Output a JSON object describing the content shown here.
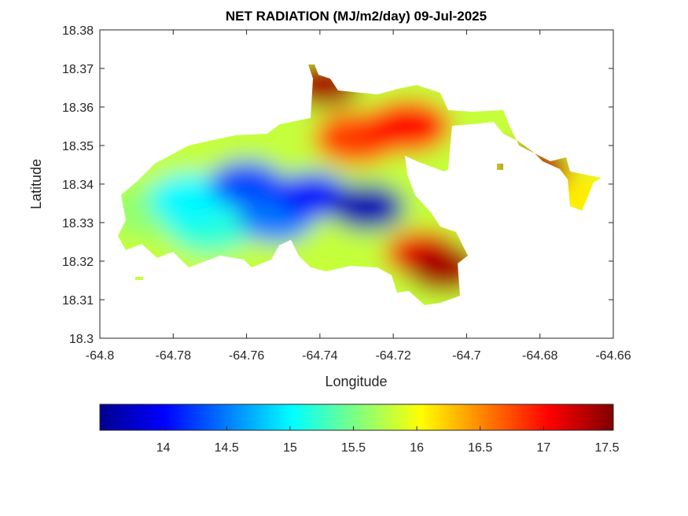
{
  "chart_data": {
    "type": "heatmap",
    "title": "NET RADIATION (MJ/m2/day) 09-Jul-2025",
    "xlabel": "Longitude",
    "ylabel": "Latitude",
    "xlim": [
      -64.8,
      -64.66
    ],
    "ylim": [
      18.3,
      18.38
    ],
    "x_ticks": [
      "-64.8",
      "-64.78",
      "-64.76",
      "-64.74",
      "-64.72",
      "-64.7",
      "-64.68",
      "-64.66"
    ],
    "y_ticks": [
      "18.3",
      "18.31",
      "18.32",
      "18.33",
      "18.34",
      "18.35",
      "18.36",
      "18.37",
      "18.38"
    ],
    "colormap": "jet",
    "colorbar": {
      "range": [
        13.5,
        17.55
      ],
      "ticks": [
        "14",
        "14.5",
        "15",
        "15.5",
        "16",
        "16.5",
        "17",
        "17.5"
      ],
      "tick_values": [
        14,
        14.5,
        15,
        15.5,
        16,
        16.5,
        17,
        17.5
      ],
      "placement": "bottom"
    },
    "field_centers": [
      {
        "lon": -64.727,
        "lat": 18.334,
        "value": 13.7
      },
      {
        "lon": -64.742,
        "lat": 18.337,
        "value": 14.1
      },
      {
        "lon": -64.76,
        "lat": 18.34,
        "value": 14.3
      },
      {
        "lon": -64.752,
        "lat": 18.331,
        "value": 14.5
      },
      {
        "lon": -64.775,
        "lat": 18.336,
        "value": 15.0
      },
      {
        "lon": -64.77,
        "lat": 18.329,
        "value": 15.2
      },
      {
        "lon": -64.786,
        "lat": 18.333,
        "value": 15.6
      },
      {
        "lon": -64.73,
        "lat": 18.352,
        "value": 16.8
      },
      {
        "lon": -64.716,
        "lat": 18.355,
        "value": 17.0
      },
      {
        "lon": -64.706,
        "lat": 18.318,
        "value": 17.4
      },
      {
        "lon": -64.712,
        "lat": 18.322,
        "value": 17.1
      },
      {
        "lon": -64.739,
        "lat": 18.366,
        "value": 17.4
      },
      {
        "lon": -64.682,
        "lat": 18.344,
        "value": 17.3
      },
      {
        "lon": -64.67,
        "lat": 18.337,
        "value": 16.1
      }
    ]
  }
}
